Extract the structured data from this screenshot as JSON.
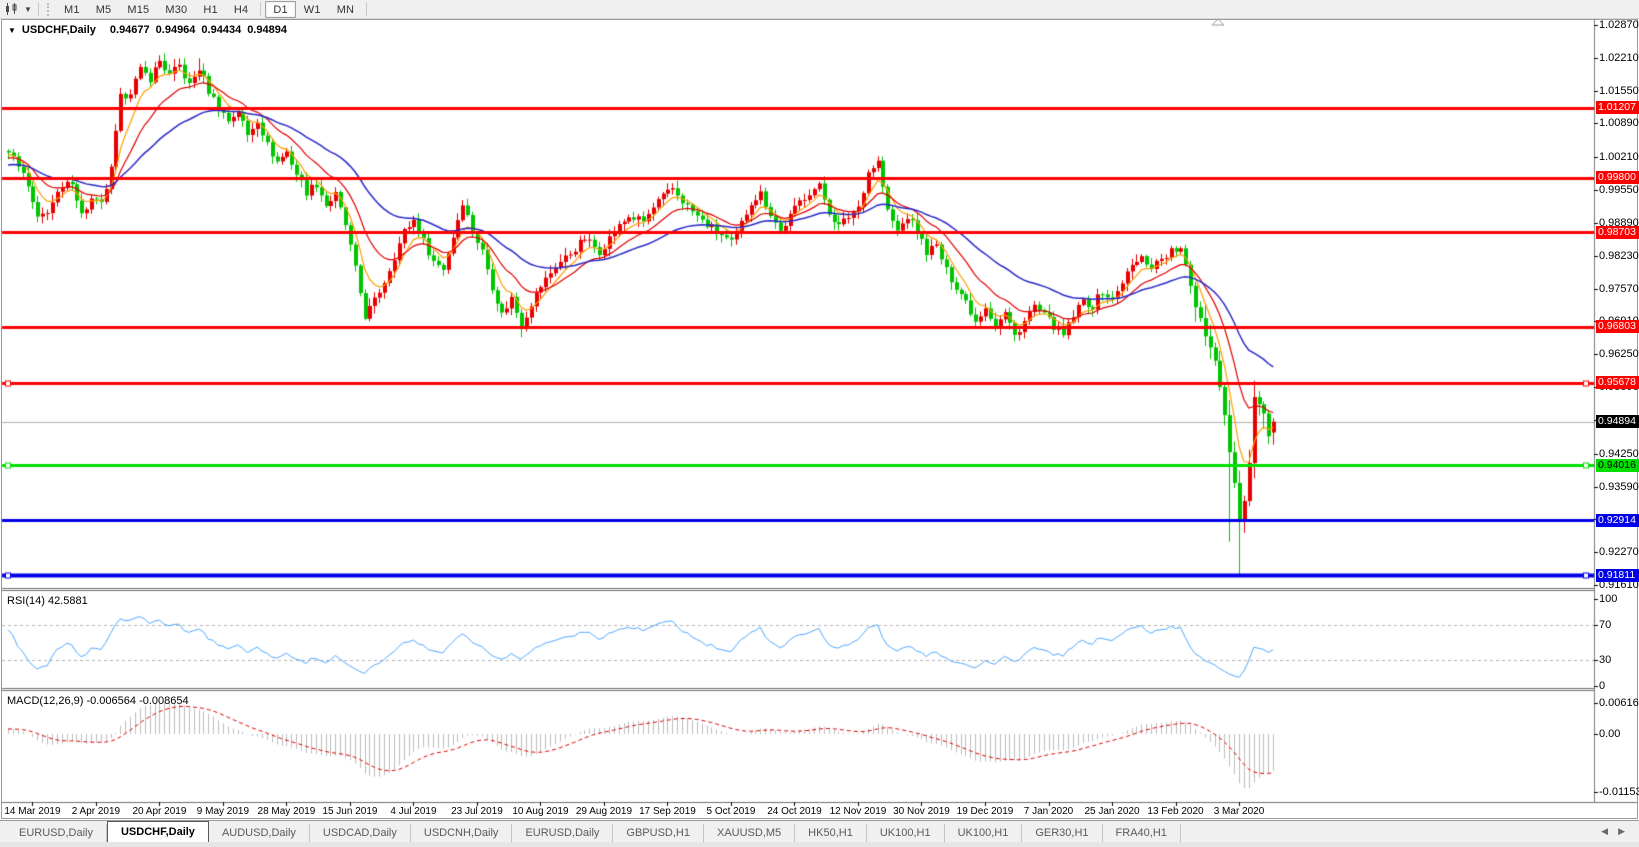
{
  "toolbar": {
    "tool_icon": "candles-tool",
    "timeframes": [
      "M1",
      "M5",
      "M15",
      "M30",
      "H1",
      "H4",
      "D1",
      "W1",
      "MN"
    ],
    "active_timeframe": "D1"
  },
  "chart": {
    "title_symbol": "USDCHF,Daily",
    "title_open": "0.94677",
    "title_high": "0.94964",
    "title_low": "0.94434",
    "title_close": "0.94894",
    "rsi_label": "RSI(14) 42.5881",
    "macd_label": "MACD(12,26,9) -0.006564 -0.008654"
  },
  "chart_data": {
    "type": "candlestick",
    "symbol": "USDCHF",
    "timeframe": "Daily",
    "current_ohlc": {
      "open": 0.94677,
      "high": 0.94964,
      "low": 0.94434,
      "close": 0.94894
    },
    "current_price_label": "0.94894",
    "y_axis_ticks": [
      1.0287,
      1.0221,
      1.0155,
      1.0089,
      1.0021,
      0.9955,
      0.9889,
      0.9823,
      0.9757,
      0.9691,
      0.9625,
      0.9559,
      0.9493,
      0.9425,
      0.9359,
      0.9293,
      0.9227,
      0.9161
    ],
    "y_axis_top": 1.0287,
    "y_axis_bottom": 0.9161,
    "x_ticks": [
      "14 Mar 2019",
      "2 Apr 2019",
      "20 Apr 2019",
      "9 May 2019",
      "28 May 2019",
      "15 Jun 2019",
      "4 Jul 2019",
      "23 Jul 2019",
      "10 Aug 2019",
      "29 Aug 2019",
      "17 Sep 2019",
      "5 Oct 2019",
      "24 Oct 2019",
      "12 Nov 2019",
      "30 Nov 2019",
      "19 Dec 2019",
      "7 Jan 2020",
      "25 Jan 2020",
      "13 Feb 2020",
      "3 Mar 2020"
    ],
    "candles_total": 260,
    "candles_per_tick": 13,
    "first_tick_candle_index": 5,
    "price_anchors": [
      [
        0,
        1.003
      ],
      [
        2,
        1.0008
      ],
      [
        4,
        0.996
      ],
      [
        6,
        0.9895
      ],
      [
        8,
        0.9915
      ],
      [
        10,
        0.9945
      ],
      [
        13,
        0.9975
      ],
      [
        15,
        0.9905
      ],
      [
        17,
        0.9935
      ],
      [
        19,
        0.9925
      ],
      [
        21,
        0.9995
      ],
      [
        23,
        1.014
      ],
      [
        25,
        1.0155
      ],
      [
        27,
        1.0195
      ],
      [
        29,
        1.018
      ],
      [
        31,
        1.0215
      ],
      [
        33,
        1.0185
      ],
      [
        35,
        1.0205
      ],
      [
        37,
        1.0165
      ],
      [
        39,
        1.02
      ],
      [
        41,
        1.0155
      ],
      [
        43,
        1.0122
      ],
      [
        45,
        1.0095
      ],
      [
        47,
        1.0115
      ],
      [
        49,
        1.0065
      ],
      [
        51,
        1.0098
      ],
      [
        53,
        1.0045
      ],
      [
        55,
        1.0012
      ],
      [
        57,
        1.0032
      ],
      [
        59,
        0.9988
      ],
      [
        61,
        0.9952
      ],
      [
        63,
        0.9968
      ],
      [
        65,
        0.9925
      ],
      [
        67,
        0.9945
      ],
      [
        69,
        0.9885
      ],
      [
        71,
        0.9795
      ],
      [
        73,
        0.9702
      ],
      [
        75,
        0.9732
      ],
      [
        77,
        0.9772
      ],
      [
        79,
        0.9822
      ],
      [
        81,
        0.9872
      ],
      [
        83,
        0.9895
      ],
      [
        85,
        0.9852
      ],
      [
        87,
        0.9812
      ],
      [
        89,
        0.9798
      ],
      [
        91,
        0.9862
      ],
      [
        93,
        0.9932
      ],
      [
        95,
        0.9872
      ],
      [
        97,
        0.9832
      ],
      [
        99,
        0.9762
      ],
      [
        101,
        0.9705
      ],
      [
        103,
        0.9738
      ],
      [
        105,
        0.9682
      ],
      [
        107,
        0.9728
      ],
      [
        109,
        0.9762
      ],
      [
        112,
        0.9802
      ],
      [
        115,
        0.9828
      ],
      [
        118,
        0.9858
      ],
      [
        121,
        0.9832
      ],
      [
        124,
        0.9872
      ],
      [
        127,
        0.9902
      ],
      [
        130,
        0.9892
      ],
      [
        133,
        0.9932
      ],
      [
        136,
        0.9958
      ],
      [
        139,
        0.9922
      ],
      [
        142,
        0.9892
      ],
      [
        145,
        0.9872
      ],
      [
        148,
        0.9848
      ],
      [
        150,
        0.9888
      ],
      [
        152,
        0.9932
      ],
      [
        154,
        0.9948
      ],
      [
        156,
        0.9908
      ],
      [
        158,
        0.9872
      ],
      [
        160,
        0.9902
      ],
      [
        162,
        0.9932
      ],
      [
        164,
        0.9952
      ],
      [
        166,
        0.9962
      ],
      [
        168,
        0.9912
      ],
      [
        170,
        0.9882
      ],
      [
        172,
        0.9902
      ],
      [
        174,
        0.9922
      ],
      [
        176,
        0.9992
      ],
      [
        178,
        1.0012
      ],
      [
        180,
        0.9912
      ],
      [
        182,
        0.9872
      ],
      [
        184,
        0.9902
      ],
      [
        186,
        0.9872
      ],
      [
        188,
        0.9832
      ],
      [
        190,
        0.9842
      ],
      [
        192,
        0.9792
      ],
      [
        194,
        0.9762
      ],
      [
        196,
        0.9732
      ],
      [
        198,
        0.9692
      ],
      [
        200,
        0.9722
      ],
      [
        202,
        0.9682
      ],
      [
        204,
        0.9708
      ],
      [
        206,
        0.9662
      ],
      [
        208,
        0.9692
      ],
      [
        210,
        0.9722
      ],
      [
        212,
        0.9702
      ],
      [
        214,
        0.9682
      ],
      [
        216,
        0.9662
      ],
      [
        218,
        0.9702
      ],
      [
        220,
        0.9732
      ],
      [
        222,
        0.9722
      ],
      [
        224,
        0.9752
      ],
      [
        226,
        0.9732
      ],
      [
        228,
        0.9772
      ],
      [
        230,
        0.9802
      ],
      [
        232,
        0.9818
      ],
      [
        234,
        0.9802
      ],
      [
        236,
        0.9818
      ],
      [
        238,
        0.9832
      ],
      [
        240,
        0.9836
      ],
      [
        241,
        0.9802
      ],
      [
        242,
        0.9762
      ],
      [
        243,
        0.9722
      ],
      [
        244,
        0.97
      ],
      [
        245,
        0.9662
      ],
      [
        246,
        0.9642
      ],
      [
        247,
        0.9612
      ],
      [
        248,
        0.9562
      ],
      [
        249,
        0.9502
      ],
      [
        250,
        0.9432
      ],
      [
        251,
        0.9366
      ],
      [
        252,
        0.929
      ],
      [
        253,
        0.9332
      ],
      [
        254,
        0.9402
      ],
      [
        255,
        0.9542
      ],
      [
        256,
        0.9522
      ],
      [
        257,
        0.9502
      ],
      [
        258,
        0.946
      ],
      [
        259,
        0.94894
      ]
    ],
    "wick_high_overrides": [
      [
        31,
        1.0226
      ],
      [
        39,
        1.022
      ],
      [
        178,
        1.0023
      ],
      [
        255,
        0.9572
      ]
    ],
    "wick_low_overrides": [
      [
        73,
        0.9693
      ],
      [
        105,
        0.9659
      ],
      [
        250,
        0.9248
      ],
      [
        252,
        0.9183
      ]
    ],
    "hlines": [
      {
        "price": 1.01207,
        "label": "1.01207",
        "color": "#ff0000",
        "width": 3,
        "text": "#ffffff",
        "handles": false
      },
      {
        "price": 0.998,
        "label": "0.99800",
        "color": "#ff0000",
        "width": 3,
        "text": "#ffffff",
        "handles": false
      },
      {
        "price": 0.98703,
        "label": "0.98703",
        "color": "#ff0000",
        "width": 3,
        "text": "#ffffff",
        "handles": false
      },
      {
        "price": 0.96803,
        "label": "0.96803",
        "color": "#ff0000",
        "width": 3,
        "text": "#ffffff",
        "handles": false
      },
      {
        "price": 0.95678,
        "label": "0.95678",
        "color": "#ff0000",
        "width": 3,
        "text": "#ffffff",
        "handles": true
      },
      {
        "price": 0.94016,
        "label": "0.94016",
        "color": "#00e000",
        "width": 3,
        "text": "#000000",
        "handles": true
      },
      {
        "price": 0.92914,
        "label": "0.92914",
        "color": "#0000e8",
        "width": 3,
        "text": "#ffffff",
        "handles": false
      },
      {
        "price": 0.91811,
        "label": "0.91811",
        "color": "#0000e8",
        "width": 4,
        "text": "#ffffff",
        "handles": true
      }
    ],
    "moving_averages": [
      {
        "name": "ma-fast",
        "period": 6,
        "color": "#ff9c00",
        "width": 1.2
      },
      {
        "name": "ma-medium",
        "period": 14,
        "color": "#e00000",
        "width": 1.2
      },
      {
        "name": "ma-slow",
        "period": 34,
        "color": "#2929c8",
        "width": 1.5
      }
    ],
    "rsi": {
      "period": 14,
      "current": 42.5881,
      "levels": [
        30,
        70
      ],
      "axis_labels": [
        "100",
        "70",
        "30",
        "0"
      ],
      "axis_values": [
        100,
        70,
        30,
        0
      ],
      "color": "#4fa8ff"
    },
    "macd": {
      "fast": 12,
      "slow": 26,
      "signal": 9,
      "current": -0.006564,
      "current_signal": -0.008654,
      "axis_labels": [
        "0.006167",
        "0.00",
        "-0.011531"
      ],
      "axis_values": [
        0.006167,
        0,
        -0.011531
      ],
      "bar_color": "#bdbdbd",
      "signal_color": "#e00000"
    },
    "colors": {
      "bull": "#e80000",
      "bear": "#00c400",
      "current_price_line": "#b0b0b0",
      "grid_text": "#000000"
    }
  },
  "tabs": {
    "items": [
      "EURUSD,Daily",
      "USDCHF,Daily",
      "AUDUSD,Daily",
      "USDCAD,Daily",
      "USDCNH,Daily",
      "EURUSD,Daily",
      "GBPUSD,H1",
      "XAUUSD,M5",
      "HK50,H1",
      "UK100,H1",
      "UK100,H1",
      "GER30,H1",
      "FRA40,H1"
    ],
    "active_index": 1,
    "scroll_left": "◀",
    "scroll_right": "▶"
  }
}
